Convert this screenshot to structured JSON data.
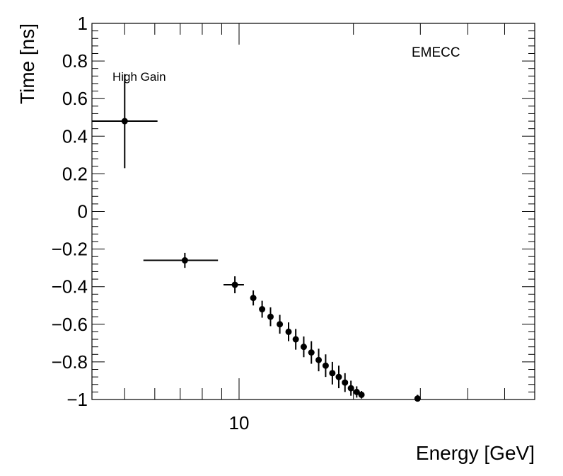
{
  "chart_data": {
    "type": "scatter",
    "xlabel": "Energy [GeV]",
    "ylabel": "Time [ns]",
    "xscale": "log",
    "xlim": [
      4.1,
      60
    ],
    "ylim": [
      -1,
      1
    ],
    "grid": false,
    "x_tick_labels": [
      {
        "value": 10,
        "label": "10"
      }
    ],
    "y_tick_labels": [
      {
        "value": 1,
        "label": "1"
      },
      {
        "value": 0.8,
        "label": "0.8"
      },
      {
        "value": 0.6,
        "label": "0.6"
      },
      {
        "value": 0.4,
        "label": "0.4"
      },
      {
        "value": 0.2,
        "label": "0.2"
      },
      {
        "value": 0,
        "label": "0"
      },
      {
        "value": -0.2,
        "label": "−0.2"
      },
      {
        "value": -0.4,
        "label": "−0.4"
      },
      {
        "value": -0.6,
        "label": "−0.6"
      },
      {
        "value": -0.8,
        "label": "−0.8"
      },
      {
        "value": -1,
        "label": "−1"
      }
    ],
    "annotations": [
      "EMECC",
      "High Gain"
    ],
    "series": [
      {
        "marker_color": "#000000",
        "points": [
          {
            "x": 5.0,
            "y": 0.48,
            "x_lo": 4.1,
            "x_hi": 6.1,
            "y_err": 0.25
          },
          {
            "x": 7.2,
            "y": -0.26,
            "x_lo": 5.6,
            "x_hi": 8.8,
            "y_err": 0.04
          },
          {
            "x": 9.75,
            "y": -0.39,
            "x_lo": 9.1,
            "x_hi": 10.3,
            "y_err": 0.045
          },
          {
            "x": 10.9,
            "y": -0.46,
            "y_err": 0.04
          },
          {
            "x": 11.5,
            "y": -0.52,
            "y_err": 0.045
          },
          {
            "x": 12.1,
            "y": -0.56,
            "y_err": 0.05
          },
          {
            "x": 12.8,
            "y": -0.6,
            "y_err": 0.05
          },
          {
            "x": 13.5,
            "y": -0.64,
            "y_err": 0.05
          },
          {
            "x": 14.1,
            "y": -0.68,
            "y_err": 0.055
          },
          {
            "x": 14.8,
            "y": -0.72,
            "y_err": 0.055
          },
          {
            "x": 15.5,
            "y": -0.75,
            "y_err": 0.06
          },
          {
            "x": 16.2,
            "y": -0.79,
            "y_err": 0.06
          },
          {
            "x": 16.9,
            "y": -0.82,
            "y_err": 0.06
          },
          {
            "x": 17.6,
            "y": -0.86,
            "y_err": 0.06
          },
          {
            "x": 18.3,
            "y": -0.88,
            "y_err": 0.06
          },
          {
            "x": 19.0,
            "y": -0.91,
            "y_err": 0.05
          },
          {
            "x": 19.7,
            "y": -0.94,
            "y_err": 0.04
          },
          {
            "x": 20.4,
            "y": -0.96,
            "y_err": 0.03
          },
          {
            "x": 21.0,
            "y": -0.975,
            "y_err": 0.02
          },
          {
            "x": 29.5,
            "y": -0.995,
            "y_err": 0.02
          }
        ]
      }
    ]
  }
}
